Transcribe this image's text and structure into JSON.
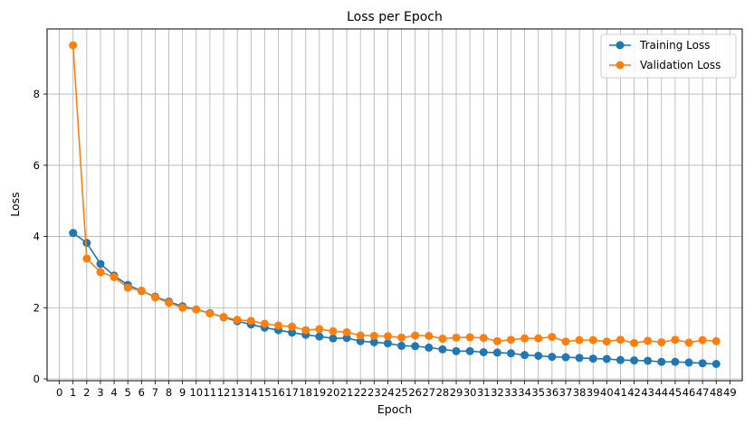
{
  "chart_data": {
    "type": "line",
    "title": "Loss per Epoch",
    "xlabel": "Epoch",
    "ylabel": "Loss",
    "xlim": [
      -0.9,
      49.9
    ],
    "ylim": [
      -0.05,
      9.83
    ],
    "x_ticks": [
      0,
      1,
      2,
      3,
      4,
      5,
      6,
      7,
      8,
      9,
      10,
      11,
      12,
      13,
      14,
      15,
      16,
      17,
      18,
      19,
      20,
      21,
      22,
      23,
      24,
      25,
      26,
      27,
      28,
      29,
      30,
      31,
      32,
      33,
      34,
      35,
      36,
      37,
      38,
      39,
      40,
      41,
      42,
      43,
      44,
      45,
      46,
      47,
      48,
      49
    ],
    "y_ticks": [
      0,
      2,
      4,
      6,
      8
    ],
    "grid": true,
    "legend_position": "top-right",
    "x": [
      1,
      2,
      3,
      4,
      5,
      6,
      7,
      8,
      9,
      10,
      11,
      12,
      13,
      14,
      15,
      16,
      17,
      18,
      19,
      20,
      21,
      22,
      23,
      24,
      25,
      26,
      27,
      28,
      29,
      30,
      31,
      32,
      33,
      34,
      35,
      36,
      37,
      38,
      39,
      40,
      41,
      42,
      43,
      44,
      45,
      46,
      47,
      48
    ],
    "series": [
      {
        "name": "Training Loss",
        "color": "#1f77b4",
        "values": [
          4.1,
          3.82,
          3.23,
          2.9,
          2.64,
          2.47,
          2.31,
          2.17,
          2.04,
          1.95,
          1.85,
          1.73,
          1.62,
          1.53,
          1.44,
          1.37,
          1.3,
          1.24,
          1.19,
          1.14,
          1.15,
          1.06,
          1.03,
          1.0,
          0.93,
          0.92,
          0.88,
          0.83,
          0.78,
          0.78,
          0.75,
          0.74,
          0.72,
          0.67,
          0.65,
          0.62,
          0.61,
          0.59,
          0.57,
          0.56,
          0.53,
          0.52,
          0.51,
          0.48,
          0.48,
          0.46,
          0.44,
          0.42
        ]
      },
      {
        "name": "Validation Loss",
        "color": "#ff7f0e",
        "values": [
          9.37,
          3.38,
          3.0,
          2.86,
          2.56,
          2.48,
          2.29,
          2.14,
          2.0,
          1.95,
          1.84,
          1.74,
          1.66,
          1.63,
          1.55,
          1.5,
          1.47,
          1.37,
          1.4,
          1.34,
          1.31,
          1.22,
          1.21,
          1.2,
          1.16,
          1.22,
          1.21,
          1.13,
          1.16,
          1.17,
          1.15,
          1.06,
          1.1,
          1.14,
          1.14,
          1.18,
          1.05,
          1.09,
          1.09,
          1.05,
          1.1,
          1.01,
          1.07,
          1.03,
          1.1,
          1.02,
          1.09,
          1.06
        ]
      }
    ]
  }
}
